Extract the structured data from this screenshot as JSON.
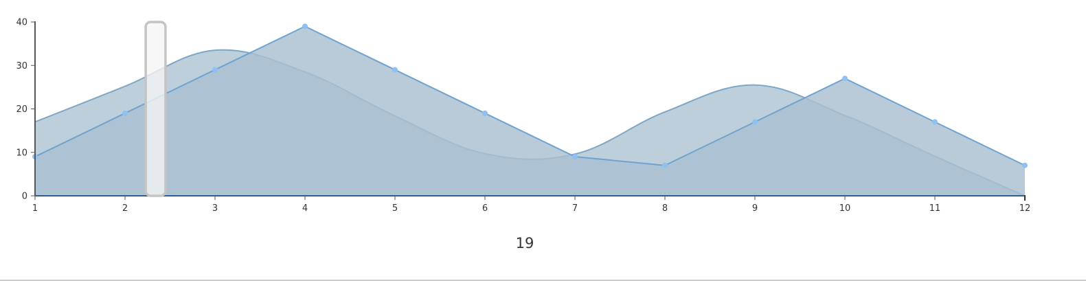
{
  "chart_data": {
    "type": "area",
    "x": [
      1,
      2,
      3,
      4,
      5,
      6,
      7,
      8,
      9,
      10,
      11,
      12
    ],
    "xlim": [
      1,
      12
    ],
    "ylim": [
      0,
      40
    ],
    "x_ticks": [
      "1",
      "2",
      "3",
      "4",
      "5",
      "6",
      "7",
      "8",
      "9",
      "10",
      "11",
      "12"
    ],
    "y_ticks": [
      "0",
      "10",
      "20",
      "30",
      "40"
    ],
    "series": [
      {
        "curve": "smooth",
        "values": [
          17,
          25.2,
          33.5,
          28.5,
          18.4,
          9.7,
          9.6,
          19.3,
          25.5,
          18.5,
          9.1,
          0
        ],
        "fill": "#b0c4d4",
        "stroke": "#7ea6c6"
      },
      {
        "curve": "linear",
        "values": [
          9,
          19,
          29,
          39,
          29,
          19,
          9,
          7,
          17,
          27,
          17,
          7
        ],
        "fill": "#a9bfd1",
        "stroke": "#6fa3cf",
        "marker_color": "#8ec0f2"
      }
    ],
    "grid": false,
    "legend": "none"
  },
  "brush": {
    "x_from": 2.23,
    "x_to": 2.45
  },
  "readout": {
    "value": "19"
  }
}
